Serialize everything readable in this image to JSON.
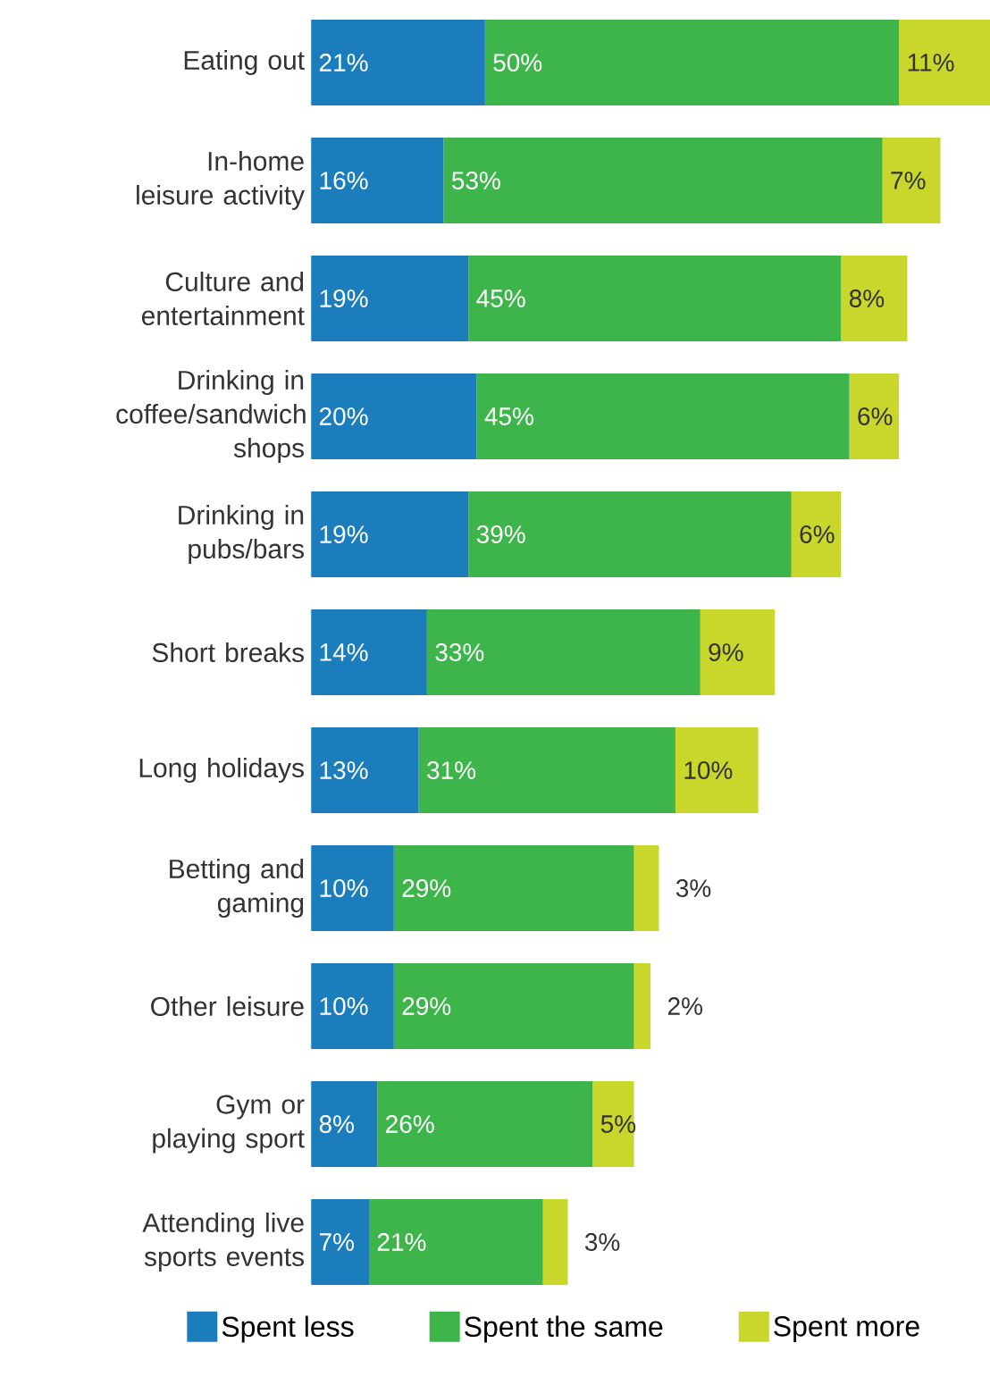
{
  "chart_data": {
    "type": "bar",
    "orientation": "horizontal",
    "stacked": true,
    "data_labels": true,
    "legend": "bottom",
    "categories": [
      "Eating out",
      "In-home leisure activity",
      "Culture and entertainment",
      "Drinking in coffee/sandwich shops",
      "Drinking in pubs/bars",
      "Short breaks",
      "Long holidays",
      "Betting and gaming",
      "Other leisure",
      "Gym or playing sport",
      "Attending live sports events"
    ],
    "series": [
      {
        "name": "Spent less",
        "color": "#1b7dbb",
        "values": [
          21,
          16,
          19,
          20,
          19,
          14,
          13,
          10,
          10,
          8,
          7
        ],
        "value_labels": [
          "21%",
          "16%",
          "19%",
          "20%",
          "19%",
          "14%",
          "13%",
          "10%",
          "10%",
          "8%",
          "7%"
        ]
      },
      {
        "name": "Spent the same",
        "color": "#3db54a",
        "values": [
          50,
          53,
          45,
          45,
          39,
          33,
          31,
          29,
          29,
          26,
          21
        ],
        "value_labels": [
          "50%",
          "53%",
          "45%",
          "45%",
          "39%",
          "33%",
          "31%",
          "29%",
          "29%",
          "26%",
          "21%"
        ]
      },
      {
        "name": "Spent more",
        "color": "#c9d72c",
        "values": [
          11,
          7,
          8,
          6,
          6,
          9,
          10,
          3,
          2,
          5,
          3
        ],
        "value_labels": [
          "11%",
          "7%",
          "8%",
          "6%",
          "6%",
          "9%",
          "10%",
          "3%",
          "2%",
          "5%",
          "3%"
        ]
      }
    ]
  }
}
